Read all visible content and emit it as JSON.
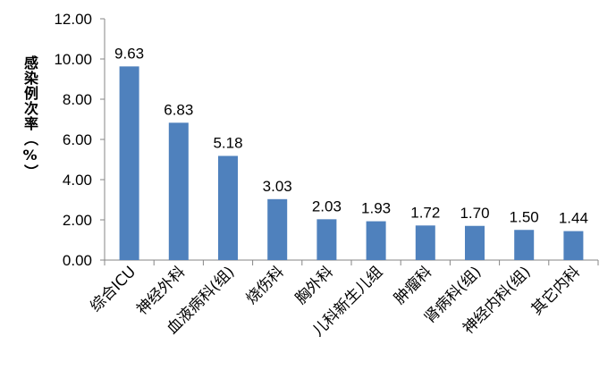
{
  "chart_data": {
    "type": "bar",
    "title": "",
    "xlabel": "",
    "ylabel": "感染例次率（%）",
    "ylim": [
      0,
      12
    ],
    "yticks": [
      "0.00",
      "2.00",
      "4.00",
      "6.00",
      "8.00",
      "10.00",
      "12.00"
    ],
    "categories": [
      "综合ICU",
      "神经外科",
      "血液病科(组)",
      "烧伤科",
      "胸外科",
      "儿科新生儿组",
      "肿瘤科",
      "肾病科(组)",
      "神经内科(组)",
      "其它内科"
    ],
    "values": [
      9.63,
      6.83,
      5.18,
      3.03,
      2.03,
      1.93,
      1.72,
      1.7,
      1.5,
      1.44
    ],
    "value_labels": [
      "9.63",
      "6.83",
      "5.18",
      "3.03",
      "2.03",
      "1.93",
      "1.72",
      "1.70",
      "1.50",
      "1.44"
    ],
    "grid": false,
    "legend": "none",
    "bar_color": "#4F81BD"
  }
}
